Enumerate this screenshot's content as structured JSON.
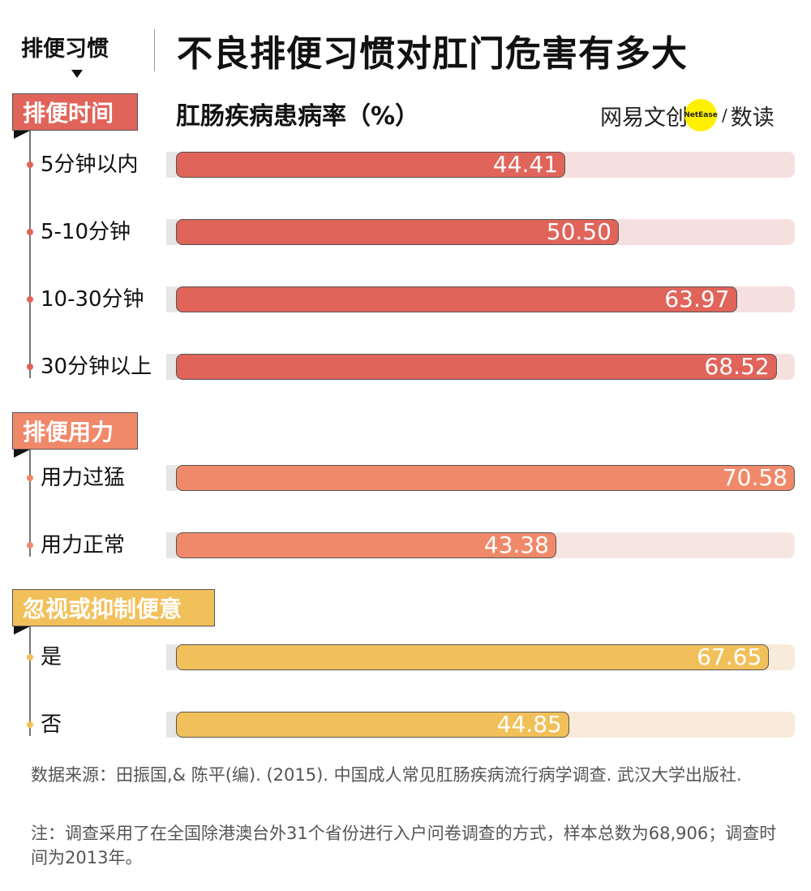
{
  "header": {
    "section_tag": "排便习惯",
    "title": "不良排便习惯对肛门危害有多大",
    "logo": {
      "brand": "网易文创",
      "badge": "NetEase",
      "sub": "数读"
    }
  },
  "chart_data": {
    "type": "bar",
    "orientation": "horizontal",
    "title": "不良排便习惯对肛门危害有多大",
    "xlabel": "肛肠疾病患病率（%）",
    "groups": [
      {
        "name": "排便时间",
        "color": "#e0645a",
        "track": "#f6e0df",
        "dot": "#e0645a",
        "categories": [
          "5分钟以内",
          "5-10分钟",
          "10-30分钟",
          "30分钟以上"
        ],
        "values": [
          44.41,
          50.5,
          63.97,
          68.52
        ],
        "labels": [
          "44.41",
          "50.50",
          "63.97",
          "68.52"
        ]
      },
      {
        "name": "排便用力",
        "color": "#f0896a",
        "track": "#f6e6e2",
        "dot": "#f0896a",
        "categories": [
          "用力过猛",
          "用力正常"
        ],
        "values": [
          70.58,
          43.38
        ],
        "labels": [
          "70.58",
          "43.38"
        ]
      },
      {
        "name": "忽视或抑制便意",
        "color": "#f2c05a",
        "track": "#f8ebd9",
        "dot": "#f2c05a",
        "categories": [
          "是",
          "否"
        ],
        "values": [
          67.65,
          44.85
        ],
        "labels": [
          "67.65",
          "44.85"
        ]
      }
    ],
    "xlim": [
      0,
      70.58
    ]
  },
  "footer": {
    "source": "数据来源：田振国,& 陈平(编). (2015). 中国成人常见肛肠疾病流行病学调查. 武汉大学出版社.",
    "note": "注：调查采用了在全国除港澳台外31个省份进行入户问卷调查的方式，样本总数为68,906；调查时间为2013年。"
  }
}
